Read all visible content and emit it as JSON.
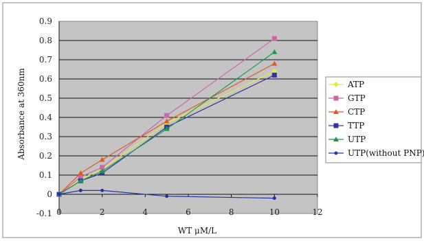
{
  "chart_data": {
    "type": "line",
    "xlabel": "WT μM/L",
    "ylabel": "Absorbance at 360nm",
    "xlim": [
      0,
      12
    ],
    "ylim": [
      -0.1,
      0.9
    ],
    "x_ticks": [
      "0",
      "2",
      "4",
      "6",
      "8",
      "10",
      "12"
    ],
    "y_ticks": [
      "0.9",
      "0.8",
      "0.7",
      "0.6",
      "0.5",
      "0.4",
      "0.3",
      "0.2",
      "0.1",
      "0",
      "-0.1"
    ],
    "grid": "horizontal",
    "legend_position": "right",
    "x": [
      0,
      1,
      2,
      5,
      10
    ],
    "series": [
      {
        "name": "ATP",
        "color": "#e8e838",
        "marker": "diamond",
        "values": [
          0,
          0.08,
          0.13,
          0.37,
          0.64
        ]
      },
      {
        "name": "GTP",
        "color": "#cc66aa",
        "marker": "square",
        "values": [
          0,
          0.09,
          0.14,
          0.41,
          0.81
        ]
      },
      {
        "name": "CTP",
        "color": "#e05a20",
        "marker": "triangle",
        "values": [
          0,
          0.11,
          0.18,
          0.38,
          0.68
        ]
      },
      {
        "name": "TTP",
        "color": "#333399",
        "marker": "square",
        "values": [
          0,
          0.07,
          0.11,
          0.35,
          0.62
        ]
      },
      {
        "name": "UTP",
        "color": "#1a9a50",
        "marker": "triangle",
        "values": [
          0,
          0.07,
          0.12,
          0.34,
          0.74
        ]
      },
      {
        "name": "UTP(without PNP)",
        "color": "#2233aa",
        "marker": "dot",
        "values": [
          0,
          0.02,
          0.02,
          -0.01,
          -0.02
        ]
      }
    ]
  }
}
